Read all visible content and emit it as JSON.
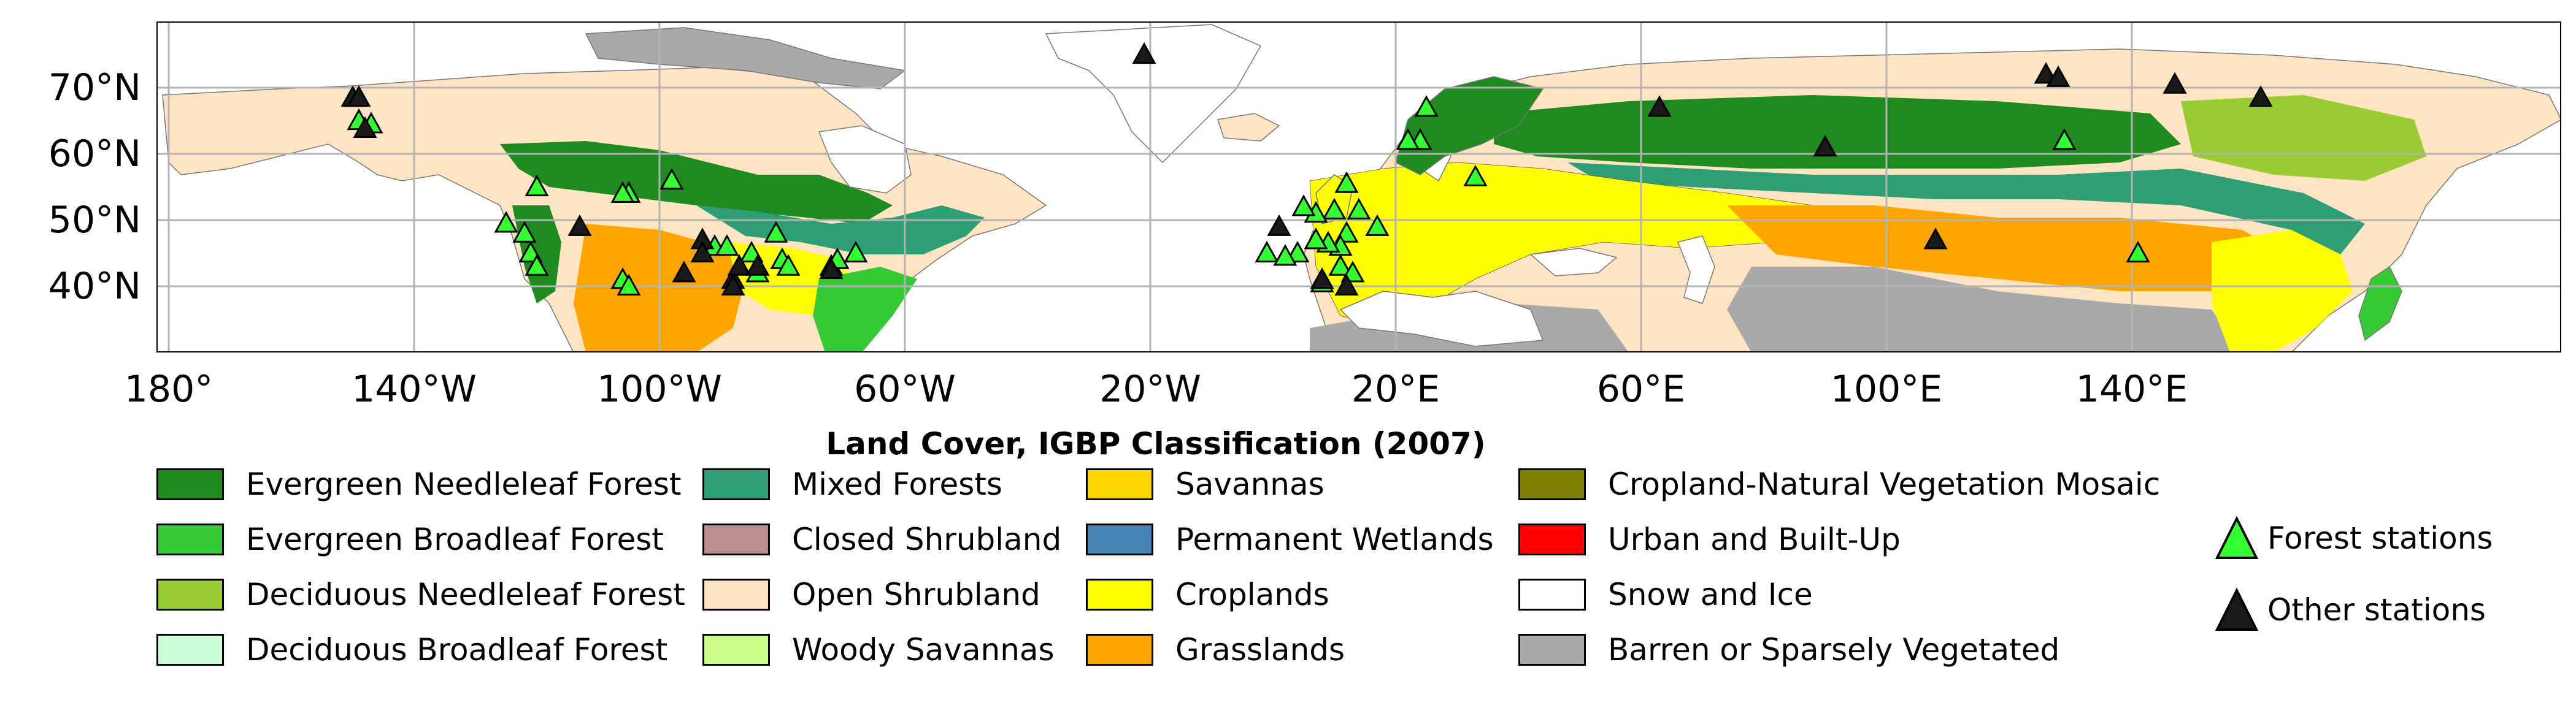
{
  "map": {
    "title": "Land Cover, IGBP Classification (2007)",
    "lat_ticks": [
      "70°N",
      "60°N",
      "50°N",
      "40°N"
    ],
    "lon_ticks": [
      "180°",
      "140°W",
      "100°W",
      "60°W",
      "20°W",
      "20°E",
      "60°E",
      "100°E",
      "140°E"
    ]
  },
  "legend": {
    "land_cover": [
      {
        "label": "Evergreen Needleleaf Forest",
        "color": "#1f8a1f"
      },
      {
        "label": "Evergreen Broadleaf Forest",
        "color": "#35c935"
      },
      {
        "label": "Deciduous Needleleaf Forest",
        "color": "#99cc33"
      },
      {
        "label": "Deciduous Broadleaf Forest",
        "color": "#ccffd9"
      },
      {
        "label": "Mixed Forests",
        "color": "#2e9e75"
      },
      {
        "label": "Closed Shrubland",
        "color": "#bc8f8f"
      },
      {
        "label": "Open Shrubland",
        "color": "#ffe4c4"
      },
      {
        "label": "Woody Savannas",
        "color": "#ccff88"
      },
      {
        "label": "Savannas",
        "color": "#ffd700"
      },
      {
        "label": "Permanent Wetlands",
        "color": "#4682b4"
      },
      {
        "label": "Croplands",
        "color": "#ffff00"
      },
      {
        "label": "Grasslands",
        "color": "#ffa500"
      },
      {
        "label": "Cropland-Natural Vegetation Mosaic",
        "color": "#808000"
      },
      {
        "label": "Urban and Built-Up",
        "color": "#ff0000"
      },
      {
        "label": "Snow and Ice",
        "color": "#ffffff"
      },
      {
        "label": "Barren or Sparsely Vegetated",
        "color": "#a9a9a9"
      }
    ],
    "stations": [
      {
        "label": "Forest stations",
        "color": "#33ff33",
        "icon": "triangle-up"
      },
      {
        "label": "Other stations",
        "color": "#1a1a1a",
        "icon": "triangle-up"
      }
    ]
  },
  "stations": {
    "forest": [
      {
        "lon": -149,
        "lat": 65
      },
      {
        "lon": -147,
        "lat": 64.5
      },
      {
        "lon": -120,
        "lat": 55
      },
      {
        "lon": -125,
        "lat": 49.5
      },
      {
        "lon": -122,
        "lat": 48
      },
      {
        "lon": -121,
        "lat": 45
      },
      {
        "lon": -120,
        "lat": 43
      },
      {
        "lon": -105,
        "lat": 54
      },
      {
        "lon": -106,
        "lat": 54
      },
      {
        "lon": -98,
        "lat": 56
      },
      {
        "lon": -106,
        "lat": 41
      },
      {
        "lon": -105,
        "lat": 40
      },
      {
        "lon": -91,
        "lat": 46
      },
      {
        "lon": -89,
        "lat": 46
      },
      {
        "lon": -85,
        "lat": 45
      },
      {
        "lon": -81,
        "lat": 48
      },
      {
        "lon": -80,
        "lat": 44
      },
      {
        "lon": -79,
        "lat": 43
      },
      {
        "lon": -72,
        "lat": 43
      },
      {
        "lon": -71,
        "lat": 44
      },
      {
        "lon": -68,
        "lat": 45
      },
      {
        "lon": -84,
        "lat": 42
      },
      {
        "lon": 25,
        "lat": 67
      },
      {
        "lon": 24,
        "lat": 62
      },
      {
        "lon": 22,
        "lat": 62
      },
      {
        "lon": 33,
        "lat": 56.5
      },
      {
        "lon": 12,
        "lat": 55.5
      },
      {
        "lon": 10,
        "lat": 51.5
      },
      {
        "lon": 7,
        "lat": 51
      },
      {
        "lon": 5,
        "lat": 52
      },
      {
        "lon": 14,
        "lat": 51.5
      },
      {
        "lon": 17,
        "lat": 49
      },
      {
        "lon": 12,
        "lat": 48
      },
      {
        "lon": 11,
        "lat": 46
      },
      {
        "lon": 9,
        "lat": 46.5
      },
      {
        "lon": 7,
        "lat": 47
      },
      {
        "lon": 4,
        "lat": 45
      },
      {
        "lon": -1,
        "lat": 45
      },
      {
        "lon": 11,
        "lat": 43
      },
      {
        "lon": 13,
        "lat": 42
      },
      {
        "lon": 8,
        "lat": 40.5
      },
      {
        "lon": 2,
        "lat": 44.5
      },
      {
        "lon": 129,
        "lat": 62
      },
      {
        "lon": 141,
        "lat": 45
      }
    ],
    "other": [
      {
        "lon": -150,
        "lat": 68.5
      },
      {
        "lon": -149,
        "lat": 68.5
      },
      {
        "lon": -148,
        "lat": 63.8
      },
      {
        "lon": -113,
        "lat": 49
      },
      {
        "lon": -96,
        "lat": 42
      },
      {
        "lon": -93,
        "lat": 47
      },
      {
        "lon": -93,
        "lat": 45
      },
      {
        "lon": -88,
        "lat": 41
      },
      {
        "lon": -88,
        "lat": 40
      },
      {
        "lon": -87,
        "lat": 43
      },
      {
        "lon": -84,
        "lat": 43
      },
      {
        "lon": -72,
        "lat": 42.5
      },
      {
        "lon": -21,
        "lat": 75
      },
      {
        "lon": 63,
        "lat": 67
      },
      {
        "lon": 90,
        "lat": 61
      },
      {
        "lon": 108,
        "lat": 47
      },
      {
        "lon": 126,
        "lat": 72
      },
      {
        "lon": 128,
        "lat": 71.5
      },
      {
        "lon": 147,
        "lat": 70.5
      },
      {
        "lon": 161,
        "lat": 68.5
      },
      {
        "lon": 1,
        "lat": 49
      },
      {
        "lon": 8,
        "lat": 41
      },
      {
        "lon": 12,
        "lat": 40
      }
    ]
  }
}
